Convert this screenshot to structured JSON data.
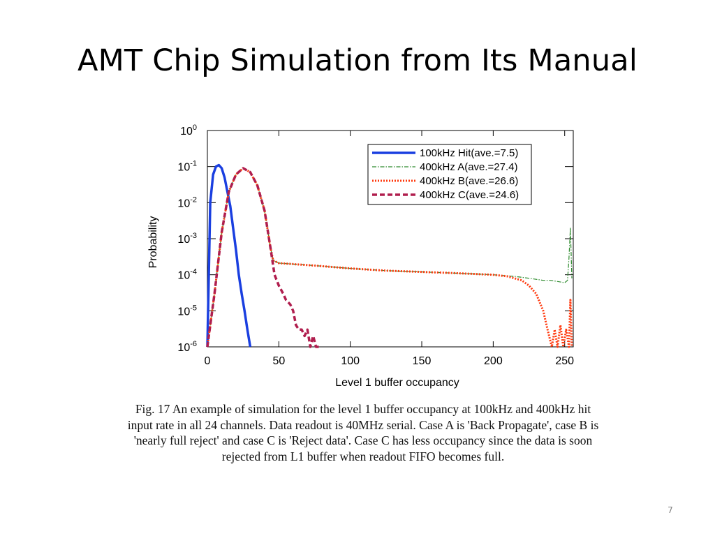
{
  "slide": {
    "title": "AMT Chip Simulation from Its Manual",
    "caption_lines": [
      "Fig. 17 An example of simulation for the level 1 buffer occupancy at 100kHz and 400kHz hit",
      "input rate in all 24 channels. Data readout is 40MHz serial. Case A is 'Back Propagate', case B is",
      "'nearly full reject' and case C is 'Reject data'. Case C has less occupancy since the data is soon",
      "rejected from L1 buffer when readout FIFO becomes full."
    ],
    "page_number": "7"
  },
  "chart_data": {
    "type": "line",
    "title": "",
    "xlabel": "Level 1 buffer occupancy",
    "ylabel": "Probability",
    "xlim": [
      0,
      256
    ],
    "ylim": [
      1e-06,
      1
    ],
    "yscale": "log",
    "x_ticks": [
      0,
      50,
      100,
      150,
      200,
      250
    ],
    "y_ticks": [
      {
        "value": 1,
        "base": "10",
        "exp": "0"
      },
      {
        "value": 0.1,
        "base": "10",
        "exp": "-1"
      },
      {
        "value": 0.01,
        "base": "10",
        "exp": "-2"
      },
      {
        "value": 0.001,
        "base": "10",
        "exp": "-3"
      },
      {
        "value": 0.0001,
        "base": "10",
        "exp": "-4"
      },
      {
        "value": 1e-05,
        "base": "10",
        "exp": "-5"
      },
      {
        "value": 1e-06,
        "base": "10",
        "exp": "-6"
      }
    ],
    "grid": false,
    "legend_position": "top-right",
    "series": [
      {
        "name": "100kHz Hit(ave.=7.5)",
        "color": "#1a3fe0",
        "style": "solid",
        "x": [
          0,
          2,
          4,
          6,
          8,
          10,
          12,
          14,
          16,
          18,
          20,
          22,
          24,
          26,
          28,
          30
        ],
        "y": [
          1e-06,
          0.01,
          0.06,
          0.1,
          0.11,
          0.09,
          0.05,
          0.02,
          0.008,
          0.002,
          0.0005,
          0.0001,
          3e-05,
          1e-05,
          3e-06,
          1e-06
        ]
      },
      {
        "name": "400kHz A(ave.=27.4)",
        "color": "#2e8b2e",
        "style": "dash-dot",
        "x": [
          0,
          5,
          10,
          15,
          20,
          25,
          30,
          35,
          40,
          44,
          46,
          50,
          75,
          100,
          125,
          150,
          175,
          200,
          215,
          225,
          235,
          240,
          245,
          250,
          252,
          253,
          254,
          255
        ],
        "y": [
          1e-06,
          3e-05,
          0.0015,
          0.02,
          0.06,
          0.09,
          0.07,
          0.03,
          0.006,
          0.0006,
          0.00025,
          0.00021,
          0.00018,
          0.00015,
          0.00013,
          0.00012,
          0.00011,
          0.0001,
          9e-05,
          8e-05,
          7e-05,
          7e-05,
          6.5e-05,
          6e-05,
          7e-05,
          0.0003,
          0.002,
          8e-05
        ]
      },
      {
        "name": "400kHz B(ave.=26.6)",
        "color": "#ff3b10",
        "style": "dotted",
        "x": [
          0,
          5,
          10,
          15,
          20,
          25,
          30,
          35,
          40,
          44,
          46,
          50,
          75,
          100,
          125,
          150,
          175,
          200,
          210,
          220,
          225,
          230,
          235,
          238,
          241,
          243,
          245,
          247,
          249,
          251,
          253,
          254,
          255
        ],
        "y": [
          1e-06,
          3e-05,
          0.0015,
          0.02,
          0.06,
          0.09,
          0.07,
          0.03,
          0.006,
          0.0006,
          0.00025,
          0.00021,
          0.00018,
          0.00015,
          0.00013,
          0.00012,
          0.00011,
          0.0001,
          9e-05,
          7e-05,
          5e-05,
          3e-05,
          1e-05,
          3e-06,
          1e-06,
          3e-06,
          1e-06,
          4e-06,
          1e-06,
          3e-06,
          1e-06,
          2e-05,
          1e-06
        ]
      },
      {
        "name": "400kHz C(ave.=24.6)",
        "color": "#b01e4e",
        "style": "dashed",
        "x": [
          0,
          5,
          10,
          15,
          20,
          25,
          30,
          35,
          40,
          44,
          47,
          50,
          53,
          55,
          58,
          60,
          62,
          64,
          66,
          68,
          70,
          72,
          74,
          76,
          78
        ],
        "y": [
          1e-06,
          3e-05,
          0.0015,
          0.02,
          0.06,
          0.09,
          0.07,
          0.03,
          0.006,
          0.0006,
          0.0001,
          5e-05,
          3e-05,
          2e-05,
          1.5e-05,
          1e-05,
          4e-06,
          3e-06,
          3e-06,
          2e-06,
          3e-06,
          1e-06,
          2e-06,
          1e-06,
          1e-06
        ]
      }
    ]
  }
}
